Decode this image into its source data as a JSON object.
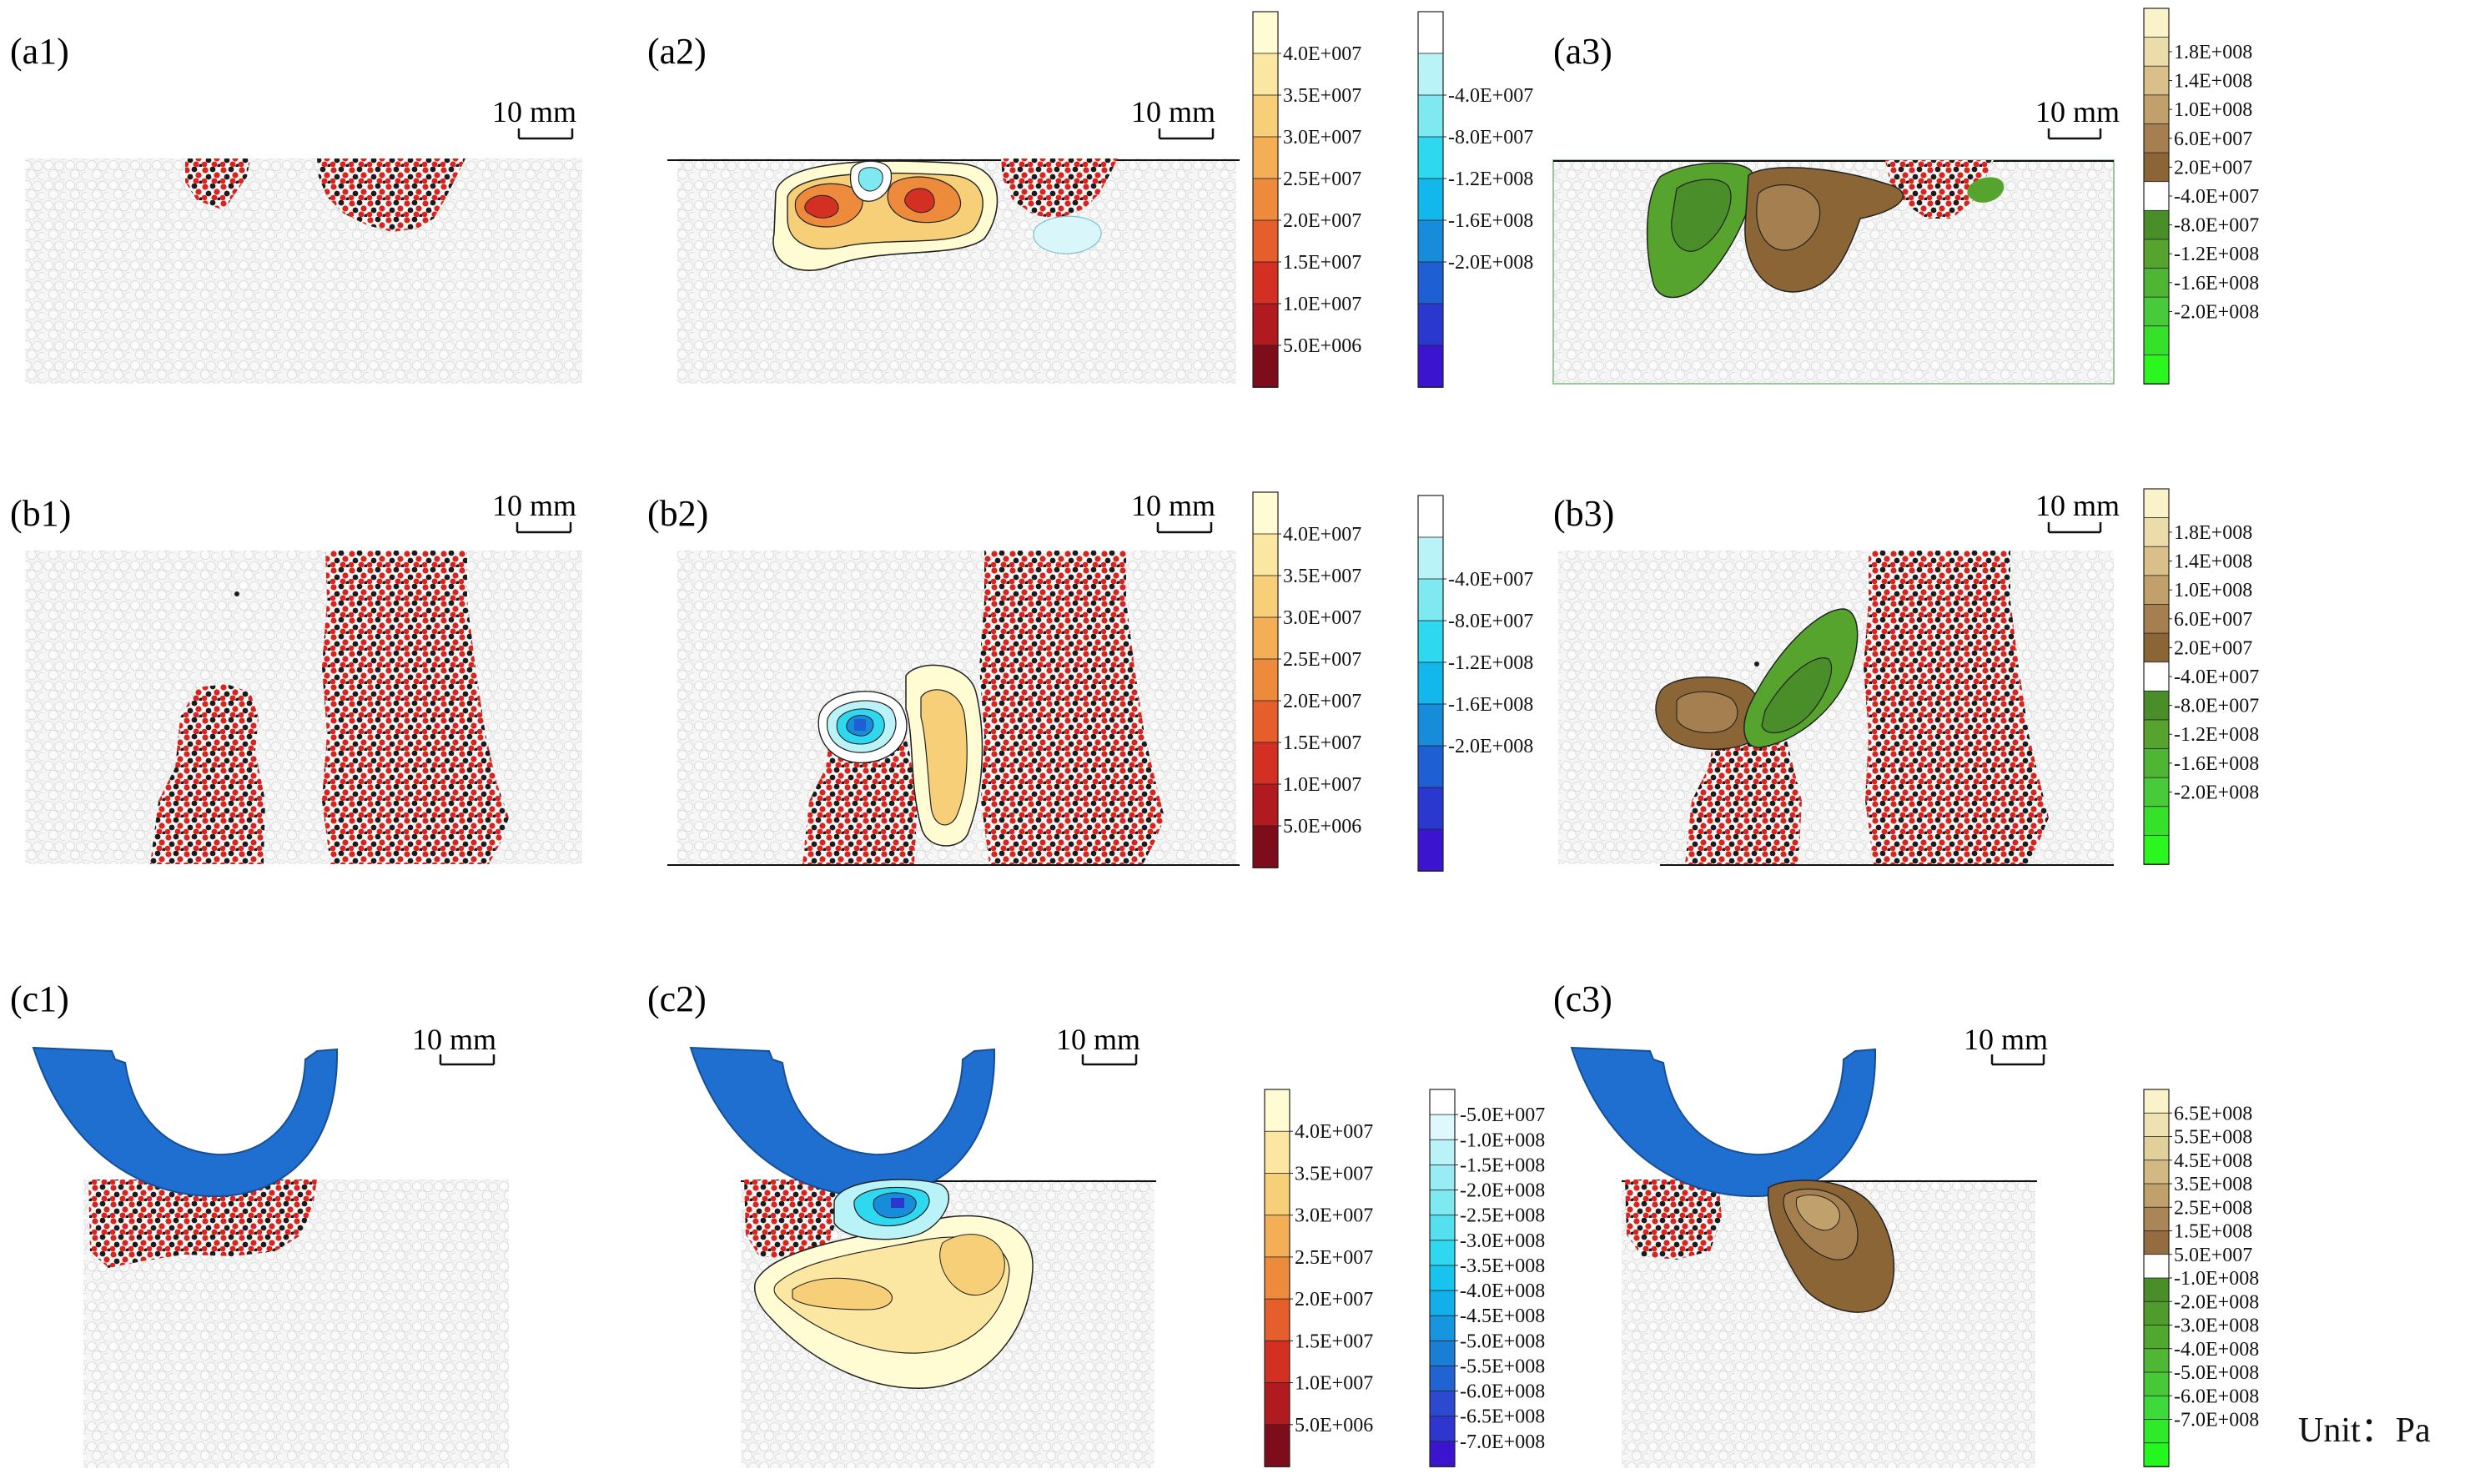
{
  "figure": {
    "unit_label": "Unit：Pa",
    "scale_bar_label": "10 mm"
  },
  "colors": {
    "specimen_bg": "#f4f5f4",
    "particle_edge": "#d9dbd9",
    "crack_red": "#d8231e",
    "crack_black": "#1b1b1b",
    "tool_blue": "#1f6fd0",
    "contour_line": "#222222"
  },
  "panels": [
    {
      "id": "a1",
      "label": "(a1)"
    },
    {
      "id": "a2",
      "label": "(a2)"
    },
    {
      "id": "a3",
      "label": "(a3)"
    },
    {
      "id": "b1",
      "label": "(b1)"
    },
    {
      "id": "b2",
      "label": "(b2)"
    },
    {
      "id": "b3",
      "label": "(b3)"
    },
    {
      "id": "c1",
      "label": "(c1)"
    },
    {
      "id": "c2",
      "label": "(c2)"
    },
    {
      "id": "c3",
      "label": "(c3)"
    }
  ],
  "legends": {
    "tension_row_ab": {
      "name": "tension-legend",
      "colors": [
        "#fffbd2",
        "#fbe7a2",
        "#f7cf78",
        "#f3ae56",
        "#ee8a3c",
        "#e55e2b",
        "#d32f22",
        "#b11a1e",
        "#7d0d1a"
      ],
      "labels": [
        "4.0E+007",
        "3.5E+007",
        "3.0E+007",
        "2.5E+007",
        "2.0E+007",
        "1.5E+007",
        "1.0E+007",
        "5.0E+006"
      ]
    },
    "compression_row_ab": {
      "name": "compression-legend",
      "colors": [
        "#ffffff",
        "#b9f3f7",
        "#7fe9f2",
        "#2ed8ee",
        "#12b7ec",
        "#178cdb",
        "#1f5fd4",
        "#2b38cf",
        "#3a14cf"
      ],
      "labels": [
        "-4.0E+007",
        "-8.0E+007",
        "-1.2E+008",
        "-1.6E+008",
        "-2.0E+008"
      ]
    },
    "shear_row_ab": {
      "name": "shear-legend",
      "colors": [
        "#faf3c9",
        "#ecdcaa",
        "#d9c08a",
        "#c2a06c",
        "#a67f51",
        "#8c6536",
        "#ffffff",
        "#4a8e2a",
        "#56a32d",
        "#4fb534",
        "#47cb3a",
        "#36e12a",
        "#2bf61e"
      ],
      "labels": [
        "1.8E+008",
        "1.4E+008",
        "1.0E+008",
        "6.0E+007",
        "2.0E+007",
        "-4.0E+007",
        "-8.0E+007",
        "-1.2E+008",
        "-1.6E+008",
        "-2.0E+008"
      ]
    },
    "tension_row_c": {
      "name": "tension-legend",
      "colors": [
        "#fffbd2",
        "#fbe7a2",
        "#f7cf78",
        "#f3ae56",
        "#ee8a3c",
        "#e55e2b",
        "#d32f22",
        "#b11a1e",
        "#7d0d1a"
      ],
      "labels": [
        "4.0E+007",
        "3.5E+007",
        "3.0E+007",
        "2.5E+007",
        "2.0E+007",
        "1.5E+007",
        "1.0E+007",
        "5.0E+006"
      ]
    },
    "compression_row_c": {
      "name": "compression-legend",
      "colors": [
        "#ffffff",
        "#dff8fb",
        "#b9f3f7",
        "#98edf5",
        "#7fe9f2",
        "#55e0f0",
        "#2ed8ee",
        "#18c4ee",
        "#12b0ea",
        "#1696df",
        "#1a7ed7",
        "#1f64d2",
        "#2b4ad0",
        "#2f36cf",
        "#3a14cf"
      ],
      "labels": [
        "-5.0E+007",
        "-1.0E+008",
        "-1.5E+008",
        "-2.0E+008",
        "-2.5E+008",
        "-3.0E+008",
        "-3.5E+008",
        "-4.0E+008",
        "-4.5E+008",
        "-5.0E+008",
        "-5.5E+008",
        "-6.0E+008",
        "-6.5E+008",
        "-7.0E+008"
      ]
    },
    "shear_row_c": {
      "name": "shear-legend",
      "colors": [
        "#faf3c9",
        "#efe2b2",
        "#e2d09b",
        "#d2b983",
        "#c0a06b",
        "#aa8656",
        "#946c40",
        "#ffffff",
        "#4a8e2a",
        "#4f9b2c",
        "#50a82f",
        "#4eb733",
        "#47c937",
        "#3ed93a",
        "#2eea2a",
        "#22f71e"
      ],
      "labels": [
        "6.5E+008",
        "5.5E+008",
        "4.5E+008",
        "3.5E+008",
        "2.5E+008",
        "1.5E+008",
        "5.0E+007",
        "-1.0E+008",
        "-2.0E+008",
        "-3.0E+008",
        "-4.0E+008",
        "-5.0E+008",
        "-6.0E+008",
        "-7.0E+008"
      ]
    }
  }
}
